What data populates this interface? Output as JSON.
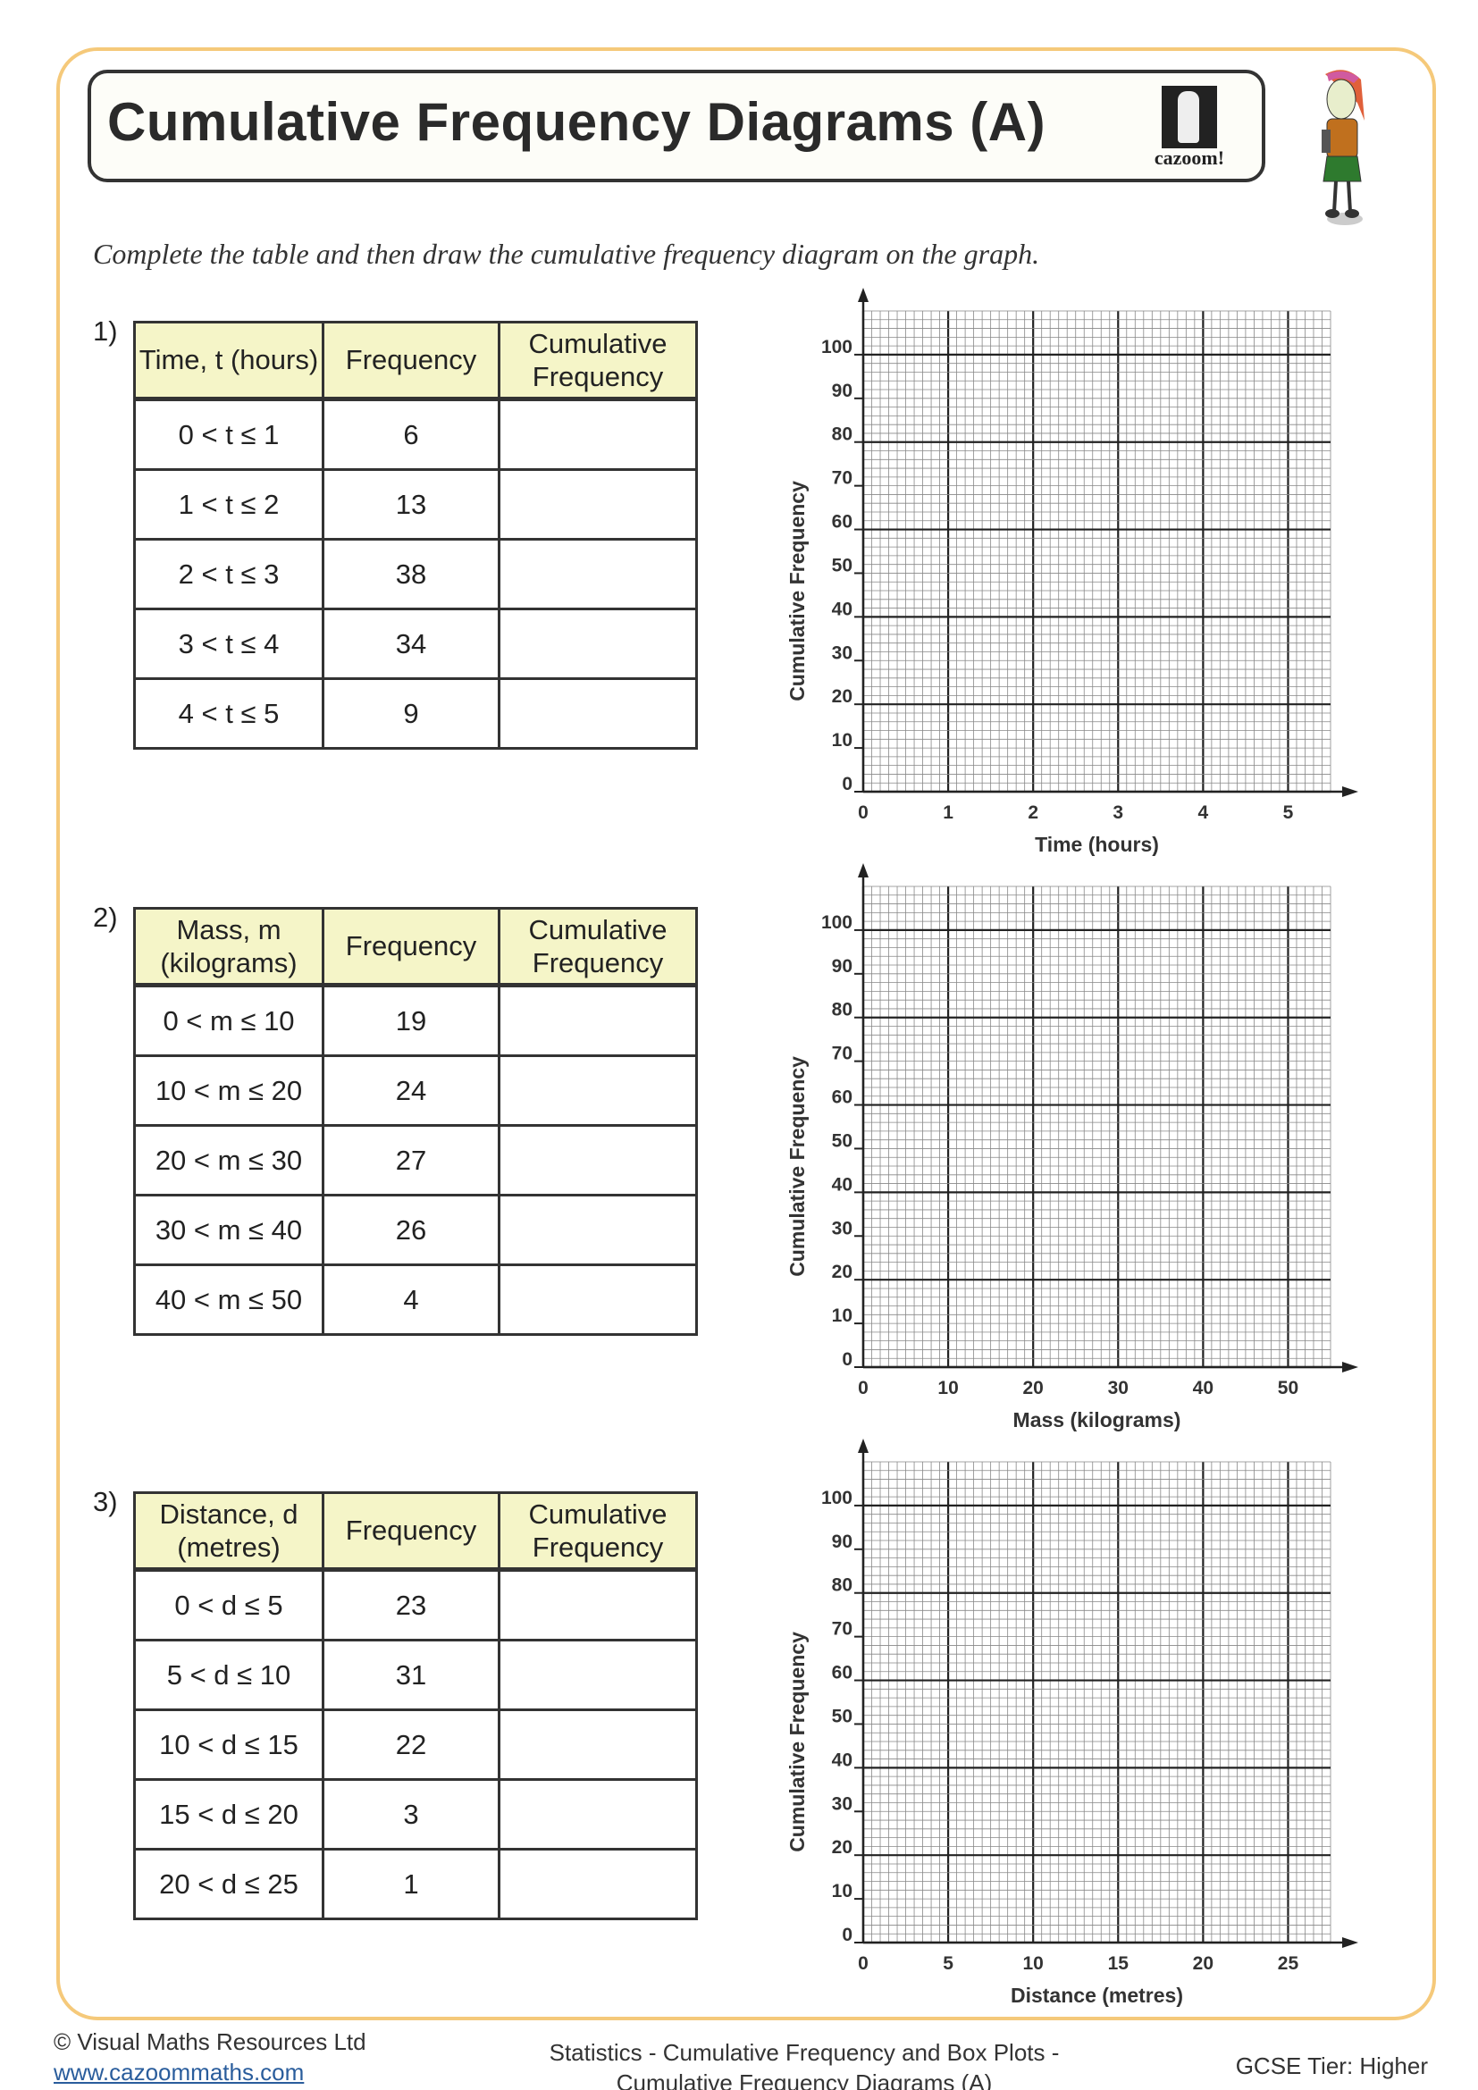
{
  "header": {
    "title": "Cumulative Frequency Diagrams (A)",
    "logo_text": "cazoom!"
  },
  "instruction": "Complete the table and then draw the cumulative frequency diagram on the graph.",
  "questions": [
    {
      "number": "1)",
      "headers": [
        "Time, t (hours)",
        "Frequency",
        "Cumulative Frequency"
      ],
      "rows": [
        [
          "0 < t ≤ 1",
          "6",
          ""
        ],
        [
          "1 < t ≤ 2",
          "13",
          ""
        ],
        [
          "2 < t ≤ 3",
          "38",
          ""
        ],
        [
          "3 < t ≤ 4",
          "34",
          ""
        ],
        [
          "4 < t ≤ 5",
          "9",
          ""
        ]
      ]
    },
    {
      "number": "2)",
      "headers": [
        "Mass, m (kilograms)",
        "Frequency",
        "Cumulative Frequency"
      ],
      "rows": [
        [
          "0 < m ≤ 10",
          "19",
          ""
        ],
        [
          "10 < m ≤ 20",
          "24",
          ""
        ],
        [
          "20 < m ≤ 30",
          "27",
          ""
        ],
        [
          "30 < m ≤ 40",
          "26",
          ""
        ],
        [
          "40 < m ≤ 50",
          "4",
          ""
        ]
      ]
    },
    {
      "number": "3)",
      "headers": [
        "Distance, d (metres)",
        "Frequency",
        "Cumulative Frequency"
      ],
      "rows": [
        [
          "0 < d ≤ 5",
          "23",
          ""
        ],
        [
          "5 < d ≤ 10",
          "31",
          ""
        ],
        [
          "10 < d ≤ 15",
          "22",
          ""
        ],
        [
          "15 < d ≤ 20",
          "3",
          ""
        ],
        [
          "20 < d ≤ 25",
          "1",
          ""
        ]
      ]
    }
  ],
  "chart_data": [
    {
      "type": "line",
      "xlabel": "Time (hours)",
      "ylabel": "Cumulative Frequency",
      "xlim": [
        0,
        5.5
      ],
      "ylim": [
        0,
        110
      ],
      "xticks": [
        "0",
        "1",
        "2",
        "3",
        "4",
        "5"
      ],
      "yticks": [
        "0",
        "10",
        "20",
        "30",
        "40",
        "50",
        "60",
        "70",
        "80",
        "90",
        "100"
      ],
      "grid": true,
      "series": []
    },
    {
      "type": "line",
      "xlabel": "Mass (kilograms)",
      "ylabel": "Cumulative Frequency",
      "xlim": [
        0,
        55
      ],
      "ylim": [
        0,
        110
      ],
      "xticks": [
        "0",
        "10",
        "20",
        "30",
        "40",
        "50"
      ],
      "yticks": [
        "0",
        "10",
        "20",
        "30",
        "40",
        "50",
        "60",
        "70",
        "80",
        "90",
        "100"
      ],
      "grid": true,
      "series": []
    },
    {
      "type": "line",
      "xlabel": "Distance (metres)",
      "ylabel": "Cumulative Frequency",
      "xlim": [
        0,
        27.5
      ],
      "ylim": [
        0,
        110
      ],
      "xticks": [
        "0",
        "5",
        "10",
        "15",
        "20",
        "25"
      ],
      "yticks": [
        "0",
        "10",
        "20",
        "30",
        "40",
        "50",
        "60",
        "70",
        "80",
        "90",
        "100"
      ],
      "grid": true,
      "series": []
    }
  ],
  "footer": {
    "copyright": "© Visual Maths Resources Ltd",
    "website": "www.cazoommaths.com",
    "topic_line1": "Statistics - Cumulative Frequency and Box Plots -",
    "topic_line2": "Cumulative Frequency Diagrams (A)",
    "tier": "GCSE Tier: Higher"
  },
  "colors": {
    "frame": "#f5c97a",
    "table_header": "#f5f5c8",
    "link": "#2a5d9c"
  }
}
